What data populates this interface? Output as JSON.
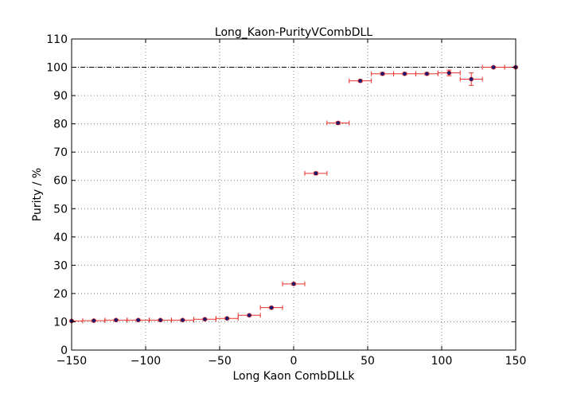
{
  "chart_data": {
    "type": "scatter",
    "title": "Long_Kaon-PurityVCombDLL",
    "xlabel": "Long Kaon CombDLLk",
    "ylabel": "Purity / %",
    "xlim": [
      -150,
      150
    ],
    "ylim": [
      0,
      110
    ],
    "xticks": [
      -150,
      -100,
      -50,
      0,
      50,
      100,
      150
    ],
    "yticks": [
      0,
      10,
      20,
      30,
      40,
      50,
      60,
      70,
      80,
      90,
      100,
      110
    ],
    "xtick_labels": [
      "−150",
      "−100",
      "−50",
      "0",
      "50",
      "100",
      "150"
    ],
    "ytick_labels": [
      "0",
      "10",
      "20",
      "30",
      "40",
      "50",
      "60",
      "70",
      "80",
      "90",
      "100",
      "110"
    ],
    "grid": true,
    "reference_line_y": 100,
    "x_error": 7.5,
    "colors": {
      "marker": "#1a1a6e",
      "errorbar": "#e8312a",
      "grid": "#808080"
    },
    "points": [
      {
        "x": -150,
        "y": 10.3,
        "yerr": 0.3
      },
      {
        "x": -135,
        "y": 10.4,
        "yerr": 0.3
      },
      {
        "x": -120,
        "y": 10.6,
        "yerr": 0.3
      },
      {
        "x": -105,
        "y": 10.6,
        "yerr": 0.3
      },
      {
        "x": -90,
        "y": 10.6,
        "yerr": 0.3
      },
      {
        "x": -75,
        "y": 10.6,
        "yerr": 0.3
      },
      {
        "x": -60,
        "y": 10.9,
        "yerr": 0.3
      },
      {
        "x": -45,
        "y": 11.2,
        "yerr": 0.3
      },
      {
        "x": -30,
        "y": 12.3,
        "yerr": 0.3
      },
      {
        "x": -15,
        "y": 15.0,
        "yerr": 0.3
      },
      {
        "x": 0,
        "y": 23.4,
        "yerr": 0.4
      },
      {
        "x": 15,
        "y": 62.5,
        "yerr": 0.5
      },
      {
        "x": 30,
        "y": 80.3,
        "yerr": 0.5
      },
      {
        "x": 45,
        "y": 95.2,
        "yerr": 0.4
      },
      {
        "x": 60,
        "y": 97.7,
        "yerr": 0.4
      },
      {
        "x": 75,
        "y": 97.7,
        "yerr": 0.4
      },
      {
        "x": 90,
        "y": 97.7,
        "yerr": 0.4
      },
      {
        "x": 105,
        "y": 98.0,
        "yerr": 1.0
      },
      {
        "x": 120,
        "y": 95.8,
        "yerr": 2.2
      },
      {
        "x": 135,
        "y": 100.0,
        "yerr": 0.3
      },
      {
        "x": 150,
        "y": 100.0,
        "yerr": 0.3
      }
    ]
  }
}
